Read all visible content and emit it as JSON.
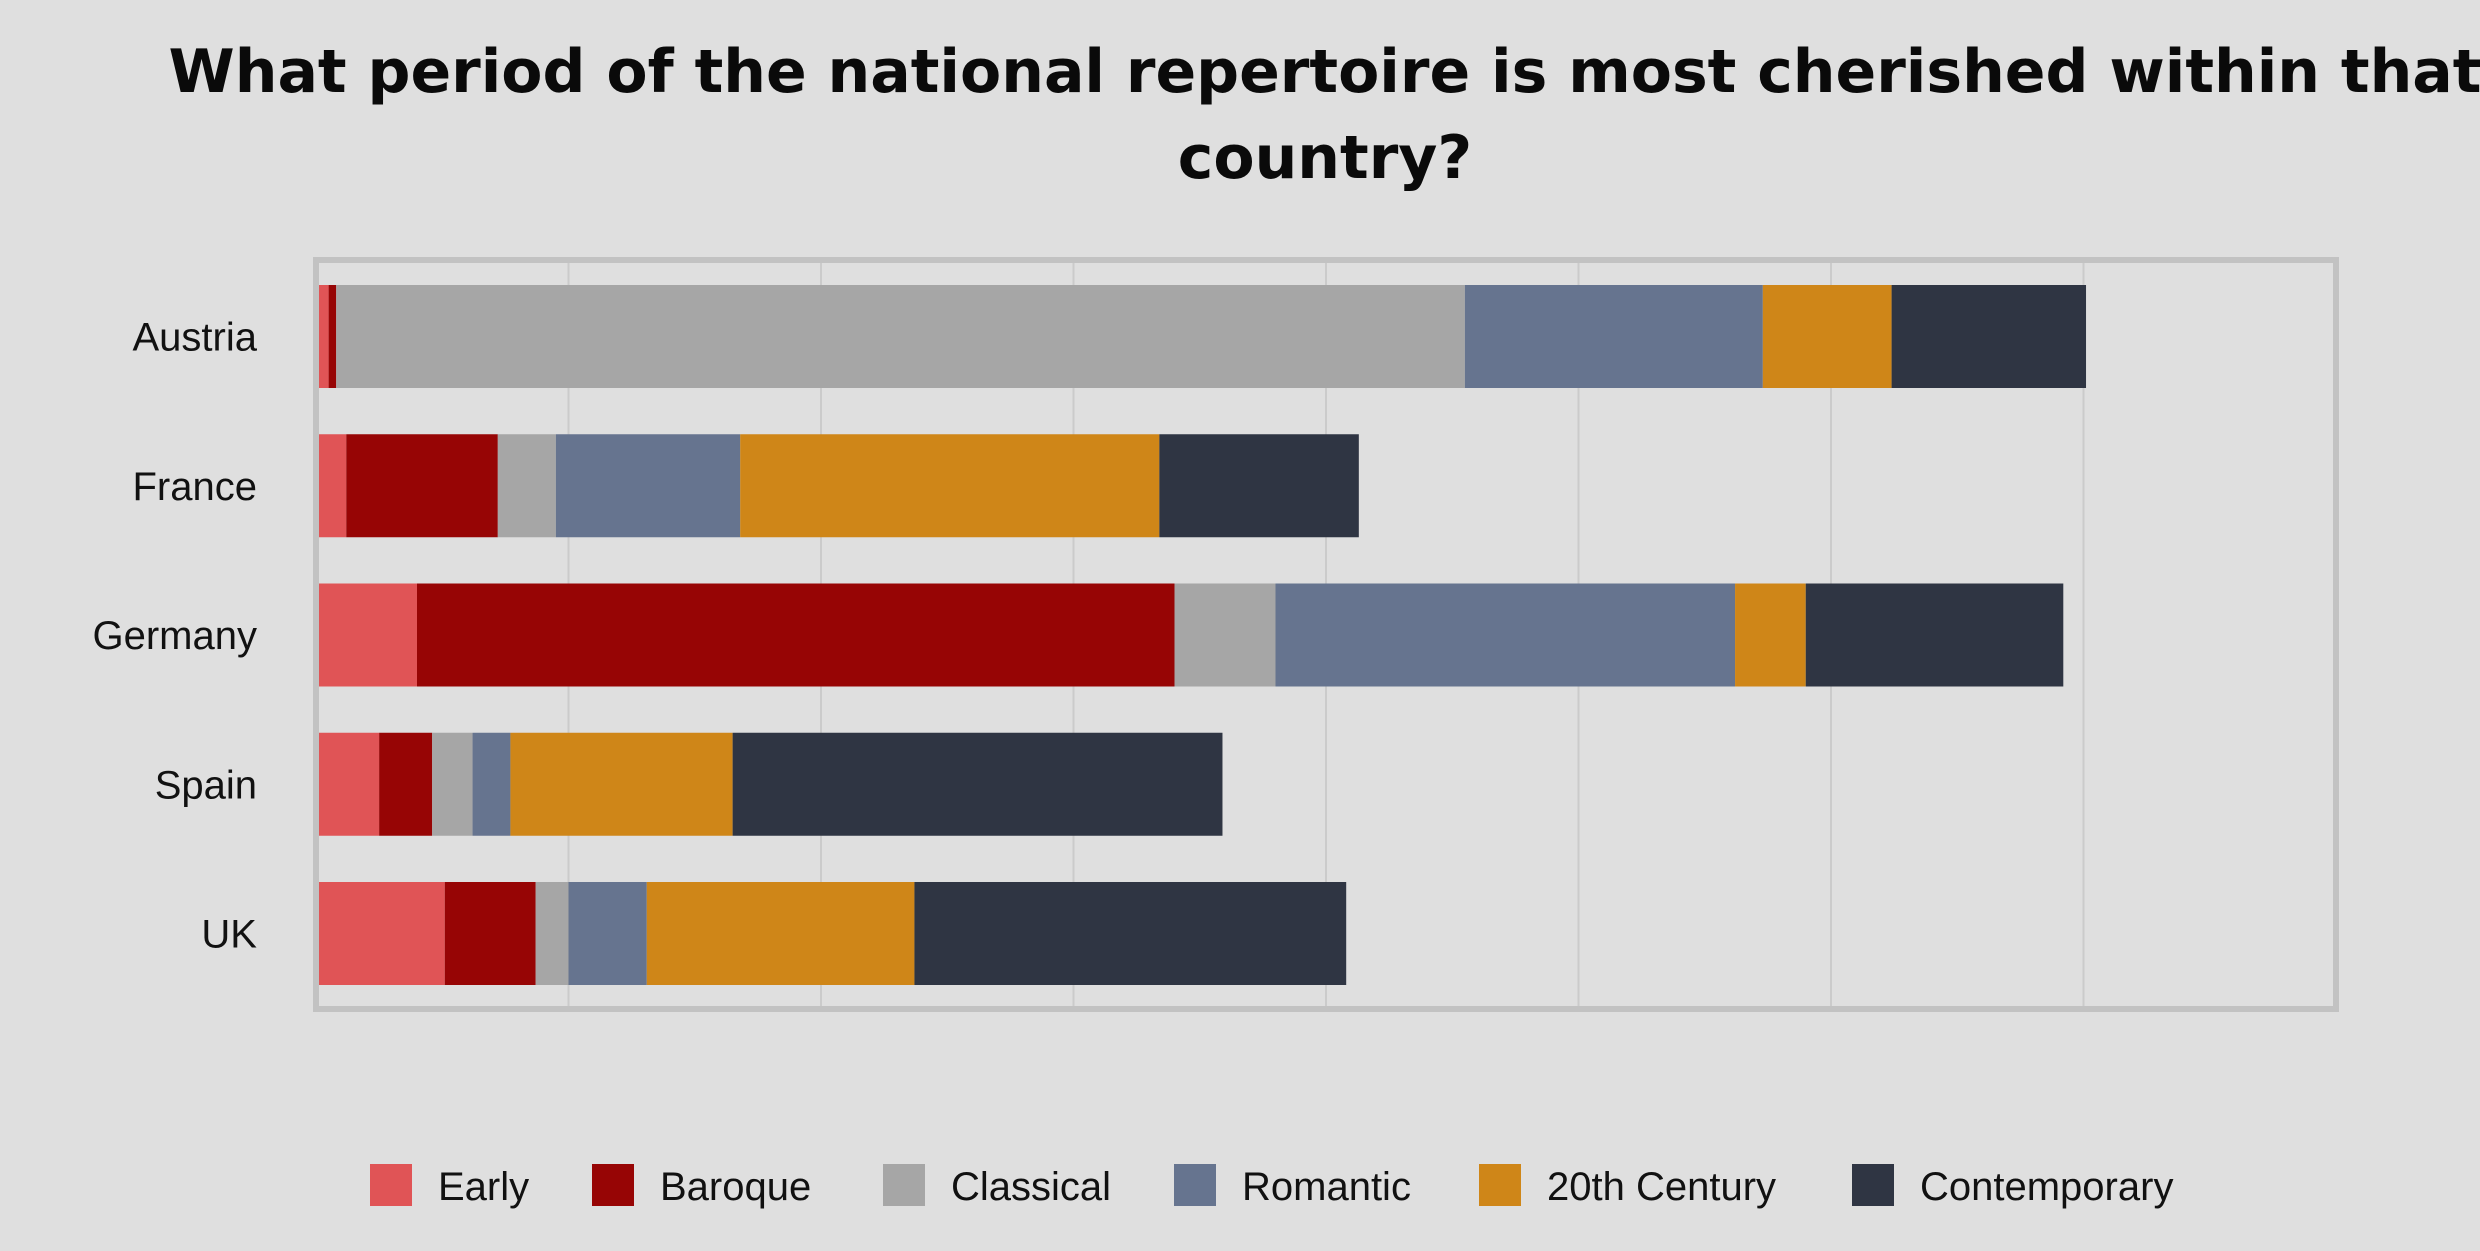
{
  "chart_data": {
    "type": "bar",
    "orientation": "horizontal",
    "stacked": true,
    "title": "What period of the national repertoire is most cherished within that country?",
    "categories": [
      "Austria",
      "France",
      "Germany",
      "Spain",
      "UK"
    ],
    "series": [
      {
        "name": "Early",
        "color": "#e05456",
        "values": [
          0.5,
          1.2,
          4.0,
          2.5,
          5.1
        ]
      },
      {
        "name": "Baroque",
        "color": "#970505",
        "values": [
          0.3,
          6.0,
          30.0,
          2.1,
          3.6
        ]
      },
      {
        "name": "Classical",
        "color": "#a6a6a6",
        "values": [
          44.7,
          2.3,
          4.0,
          1.6,
          1.3
        ]
      },
      {
        "name": "Romantic",
        "color": "#66748f",
        "values": [
          11.8,
          7.3,
          18.2,
          1.5,
          3.1
        ]
      },
      {
        "name": "20th Century",
        "color": "#cf8618",
        "values": [
          5.1,
          16.6,
          2.8,
          8.8,
          10.6
        ]
      },
      {
        "name": "Contemporary",
        "color": "#2f3543",
        "values": [
          7.7,
          7.9,
          10.2,
          19.4,
          17.1
        ]
      }
    ],
    "xlim": [
      0,
      80
    ],
    "x_gridline_step": 10,
    "grid": true,
    "legend": "bottom",
    "x_tick_labels_shown": false
  }
}
